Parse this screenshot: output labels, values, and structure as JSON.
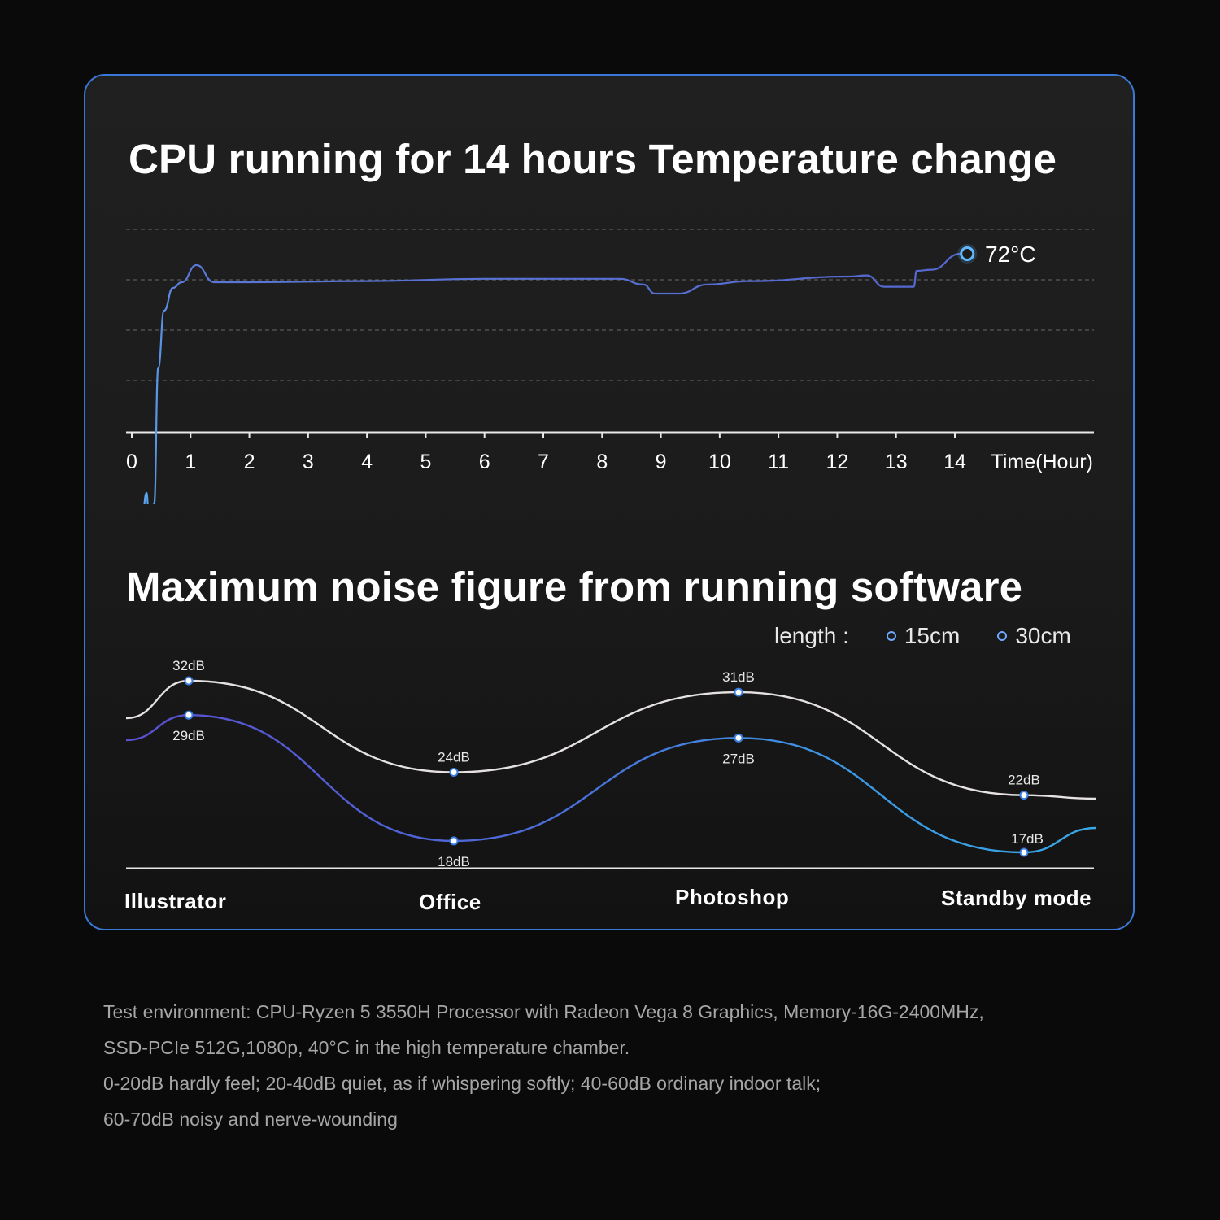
{
  "chart_data": [
    {
      "type": "line",
      "title": "CPU running for 14 hours Temperature change",
      "xlabel": "Time(Hour)",
      "ylabel": "",
      "x_ticks": [
        0,
        1,
        2,
        3,
        4,
        5,
        6,
        7,
        8,
        9,
        10,
        11,
        12,
        13,
        14
      ],
      "xlim": [
        0,
        14
      ],
      "grid": true,
      "series": [
        {
          "values": [
            [
              0.05,
              48
            ],
            [
              0.1,
              46
            ],
            [
              0.18,
              49
            ],
            [
              0.25,
              51
            ],
            [
              0.3,
              48
            ],
            [
              0.38,
              50
            ],
            [
              0.45,
              62
            ],
            [
              0.55,
              67
            ],
            [
              0.7,
              69
            ],
            [
              0.85,
              69.5
            ],
            [
              1.1,
              71
            ],
            [
              1.4,
              69.5
            ],
            [
              2,
              69.5
            ],
            [
              4,
              69.6
            ],
            [
              6,
              69.8
            ],
            [
              8.3,
              69.8
            ],
            [
              8.7,
              69.3
            ],
            [
              8.9,
              68.5
            ],
            [
              9.3,
              68.5
            ],
            [
              9.8,
              69.3
            ],
            [
              10.5,
              69.6
            ],
            [
              12.2,
              70
            ],
            [
              12.5,
              70.1
            ],
            [
              12.8,
              69.1
            ],
            [
              13.3,
              69.1
            ],
            [
              13.35,
              70.5
            ],
            [
              13.6,
              70.6
            ],
            [
              14.1,
              72
            ]
          ]
        }
      ],
      "annotation": "72°C"
    },
    {
      "type": "line",
      "title": "Maximum noise figure from running software",
      "legend_title": "length :",
      "legend_placement": "top-right",
      "categories": [
        "Illustrator",
        "Office",
        "Photoshop",
        "Standby mode"
      ],
      "series": [
        {
          "name": "15cm",
          "values": [
            32,
            24,
            31,
            22
          ],
          "labels": [
            "32dB",
            "24dB",
            "31dB",
            "22dB"
          ],
          "color": "#e6e2e2"
        },
        {
          "name": "30cm",
          "values": [
            29,
            18,
            27,
            17
          ],
          "labels": [
            "29dB",
            "18dB",
            "27dB",
            "17dB"
          ],
          "color": "#4f7fe0"
        }
      ]
    }
  ],
  "notes": [
    "Test environment: CPU-Ryzen 5 3550H Processor with Radeon Vega 8 Graphics,  Memory-16G-2400MHz,",
    "SSD-PCIe 512G,1080p, 40°C in the high temperature chamber.",
    "0-20dB hardly feel; 20-40dB quiet, as if whispering softly; 40-60dB ordinary indoor talk;",
    "60-70dB noisy and nerve-wounding"
  ],
  "colors": {
    "panel_border": "#3a78d8",
    "temp_line": "#5570d8",
    "temp_marker": "#62b8ff",
    "series_15cm": "#e6e2e2",
    "series_30cm_start": "#5a4fd0",
    "series_30cm_end": "#3aa8e8"
  }
}
